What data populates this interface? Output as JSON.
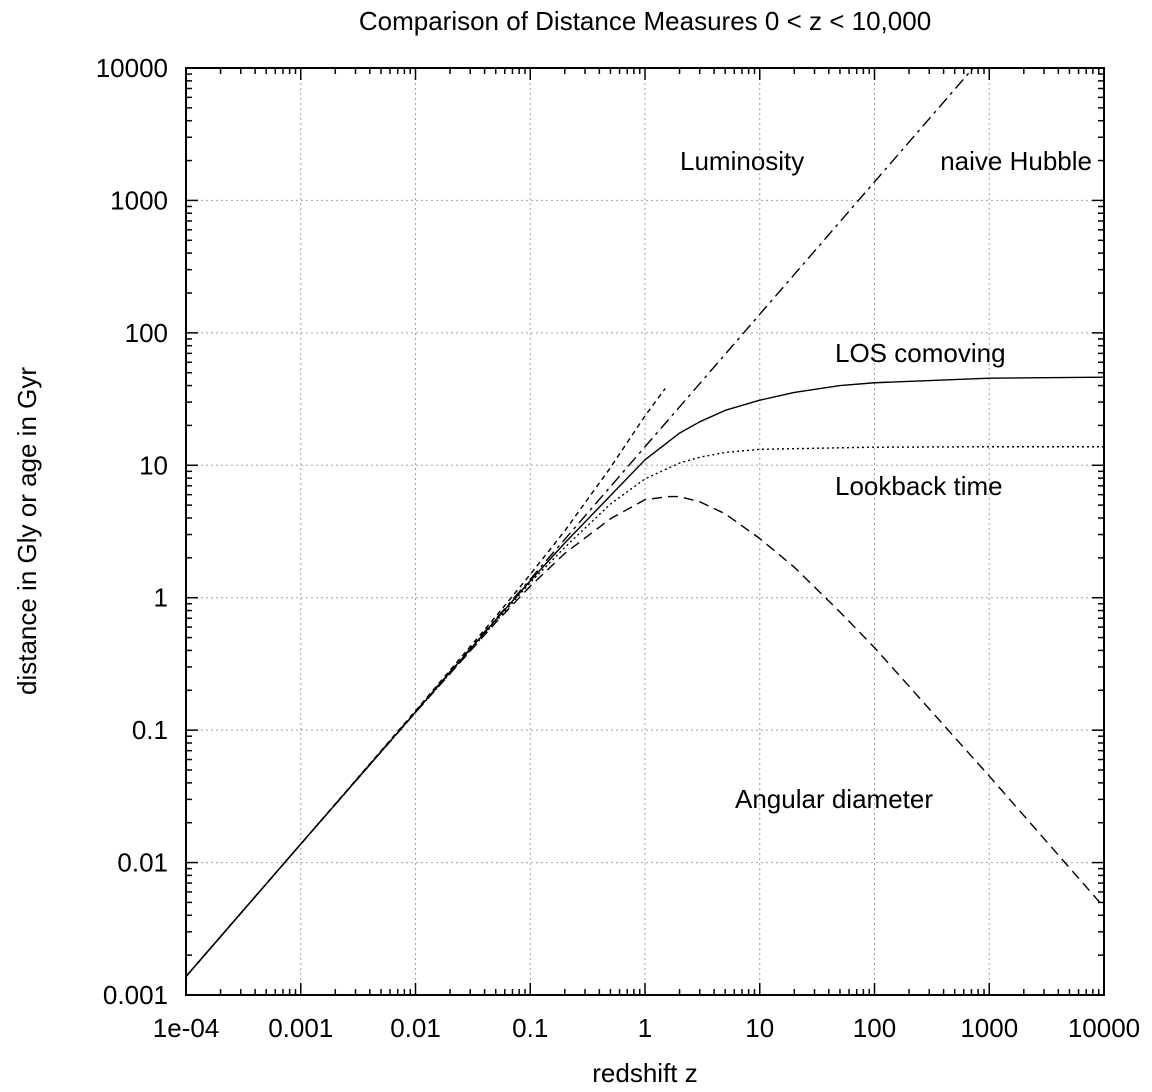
{
  "chart_data": {
    "type": "line",
    "title": "Comparison of Distance Measures 0 < z < 10,000",
    "xlabel": "redshift z",
    "ylabel": "distance in Gly or age in Gyr",
    "xscale": "log",
    "yscale": "log",
    "xlim": [
      0.0001,
      10000
    ],
    "ylim": [
      0.001,
      10000
    ],
    "grid": true,
    "x_tick_labels": [
      "1e-04",
      "0.001",
      "0.01",
      "0.1",
      "1",
      "10",
      "100",
      "1000",
      "10000"
    ],
    "y_tick_labels": [
      "0.001",
      "0.01",
      "0.1",
      "1",
      "10",
      "100",
      "1000",
      "10000"
    ],
    "series": [
      {
        "name": "Luminosity",
        "style": "dashed",
        "color": "#000000",
        "x": [
          0.0001,
          0.001,
          0.01,
          0.05,
          0.1,
          0.2,
          0.5,
          1,
          1.5
        ],
        "y": [
          0.00138,
          0.0138,
          0.14,
          0.72,
          1.5,
          3.2,
          9.6,
          23.6,
          38
        ]
      },
      {
        "name": "naive Hubble",
        "style": "dash-dot",
        "color": "#000000",
        "x": [
          0.0001,
          0.001,
          0.01,
          0.1,
          1,
          10,
          100,
          1000,
          5000
        ],
        "y": [
          0.00138,
          0.0138,
          0.138,
          1.38,
          13.8,
          138,
          1380,
          13800,
          69000
        ]
      },
      {
        "name": "LOS comoving",
        "style": "solid",
        "color": "#000000",
        "x": [
          0.0001,
          0.001,
          0.01,
          0.05,
          0.1,
          0.2,
          0.5,
          1,
          2,
          3,
          5,
          10,
          20,
          50,
          100,
          1000,
          10000
        ],
        "y": [
          0.00138,
          0.0138,
          0.137,
          0.68,
          1.34,
          2.59,
          5.9,
          11,
          17.5,
          21.3,
          26,
          31,
          35.5,
          40,
          42,
          45.5,
          46.3
        ]
      },
      {
        "name": "Lookback time",
        "style": "dotted",
        "color": "#000000",
        "x": [
          0.0001,
          0.001,
          0.01,
          0.05,
          0.1,
          0.2,
          0.5,
          1,
          2,
          3,
          5,
          10,
          100,
          1000,
          10000
        ],
        "y": [
          0.00138,
          0.0138,
          0.136,
          0.66,
          1.3,
          2.4,
          5.1,
          7.9,
          10.4,
          11.5,
          12.5,
          13.2,
          13.7,
          13.8,
          13.8
        ]
      },
      {
        "name": "Angular diameter",
        "style": "long-dashed",
        "color": "#000000",
        "x": [
          0.0001,
          0.001,
          0.01,
          0.05,
          0.1,
          0.2,
          0.5,
          1,
          1.6,
          2,
          3,
          5,
          10,
          20,
          50,
          100,
          1000,
          10000
        ],
        "y": [
          0.00138,
          0.0138,
          0.136,
          0.65,
          1.22,
          2.16,
          3.95,
          5.5,
          5.8,
          5.8,
          5.3,
          4.3,
          2.8,
          1.7,
          0.78,
          0.42,
          0.045,
          0.0046
        ]
      }
    ],
    "annotations": [
      "Luminosity",
      "naive Hubble",
      "LOS comoving",
      "Lookback time",
      "Angular diameter"
    ]
  }
}
